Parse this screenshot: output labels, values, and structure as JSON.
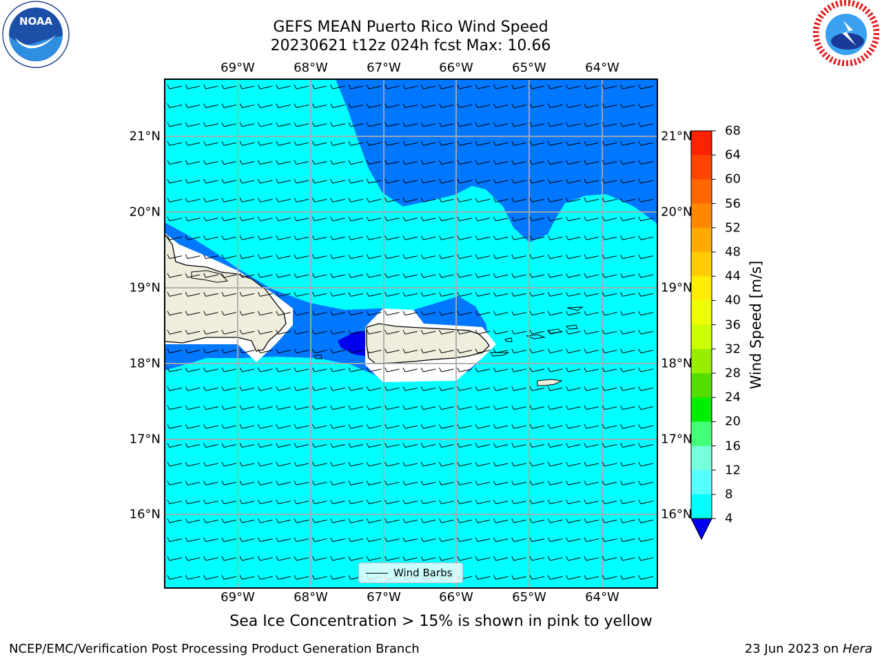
{
  "title_line1": "GEFS MEAN Puerto Rico Wind Speed",
  "title_line2": "20230621 t12z 024h fcst   Max: 10.66",
  "lon_labels": [
    "69°W",
    "68°W",
    "67°W",
    "66°W",
    "65°W",
    "64°W"
  ],
  "lat_labels": [
    "21°N",
    "20°N",
    "19°N",
    "18°N",
    "17°N",
    "16°N"
  ],
  "colorbar": {
    "label": "Wind Speed [m/s]",
    "ticks": [
      "68",
      "64",
      "60",
      "56",
      "52",
      "48",
      "44",
      "40",
      "36",
      "32",
      "28",
      "24",
      "20",
      "16",
      "12",
      "8",
      "4"
    ],
    "colors": [
      "#ff0000",
      "#ff2200",
      "#ff4400",
      "#ff6600",
      "#ff8800",
      "#ffaa00",
      "#ffcc00",
      "#ffee00",
      "#eeff00",
      "#ccff00",
      "#99ee00",
      "#55dd00",
      "#00ee00",
      "#44ff77",
      "#77ffdd",
      "#55ffff",
      "#00ffff",
      "#0077ff"
    ],
    "under_color": "#0000ee"
  },
  "legend_label": "Wind Barbs",
  "subtitle": "Sea Ice Concentration > 15% is shown in pink to yellow",
  "footer_left": "NCEP/EMC/Verification Post Processing Product Generation Branch",
  "footer_date": "23 Jun 2023 on ",
  "footer_machine": "Hera",
  "colors": {
    "ocean_cyan": "#00ffff",
    "blue_band": "#0077ff",
    "dark_blue": "#0000ee",
    "land": "#efeedd"
  },
  "logos": {
    "left": "NOAA",
    "right": "NATIONAL WEATHER SERVICE"
  }
}
